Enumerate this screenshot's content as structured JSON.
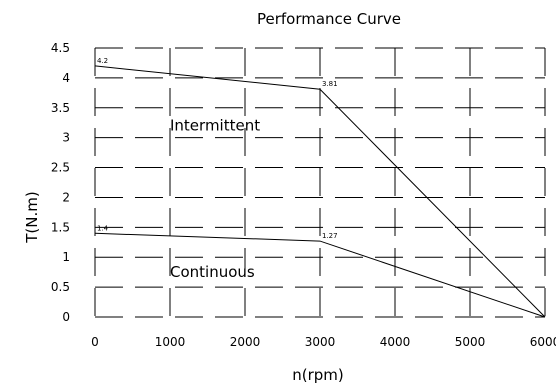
{
  "chart_data": {
    "type": "line",
    "title": "Performance Curve",
    "xlabel": "n(rpm)",
    "ylabel": "T(N.m)",
    "xlim": [
      0,
      6000
    ],
    "ylim": [
      0,
      4.5
    ],
    "xticks": [
      0,
      1000,
      2000,
      3000,
      4000,
      5000,
      6000
    ],
    "yticks": [
      0,
      0.5,
      1,
      1.5,
      2,
      2.5,
      3,
      3.5,
      4,
      4.5
    ],
    "xtick_labels": [
      "0",
      "1000",
      "2000",
      "3000",
      "4000",
      "5000",
      "6000"
    ],
    "ytick_labels": [
      "0",
      "0.5",
      "1",
      "1.5",
      "2",
      "2.5",
      "3",
      "3.5",
      "4",
      "4.5"
    ],
    "grid": true,
    "grid_style": "dashed",
    "legend": "none",
    "series": [
      {
        "name": "Intermittent",
        "x": [
          0,
          3000,
          6000
        ],
        "y": [
          4.2,
          3.81,
          0
        ],
        "point_labels": [
          "4.2",
          "3.81",
          ""
        ]
      },
      {
        "name": "Continuous",
        "x": [
          0,
          3000,
          6000
        ],
        "y": [
          1.4,
          1.27,
          0
        ],
        "point_labels": [
          "1.4",
          "1.27",
          ""
        ]
      }
    ],
    "annotations": [
      {
        "text": "Intermittent",
        "x": 1000,
        "y": 3.2
      },
      {
        "text": "Continuous",
        "x": 1000,
        "y": 0.75
      }
    ]
  }
}
